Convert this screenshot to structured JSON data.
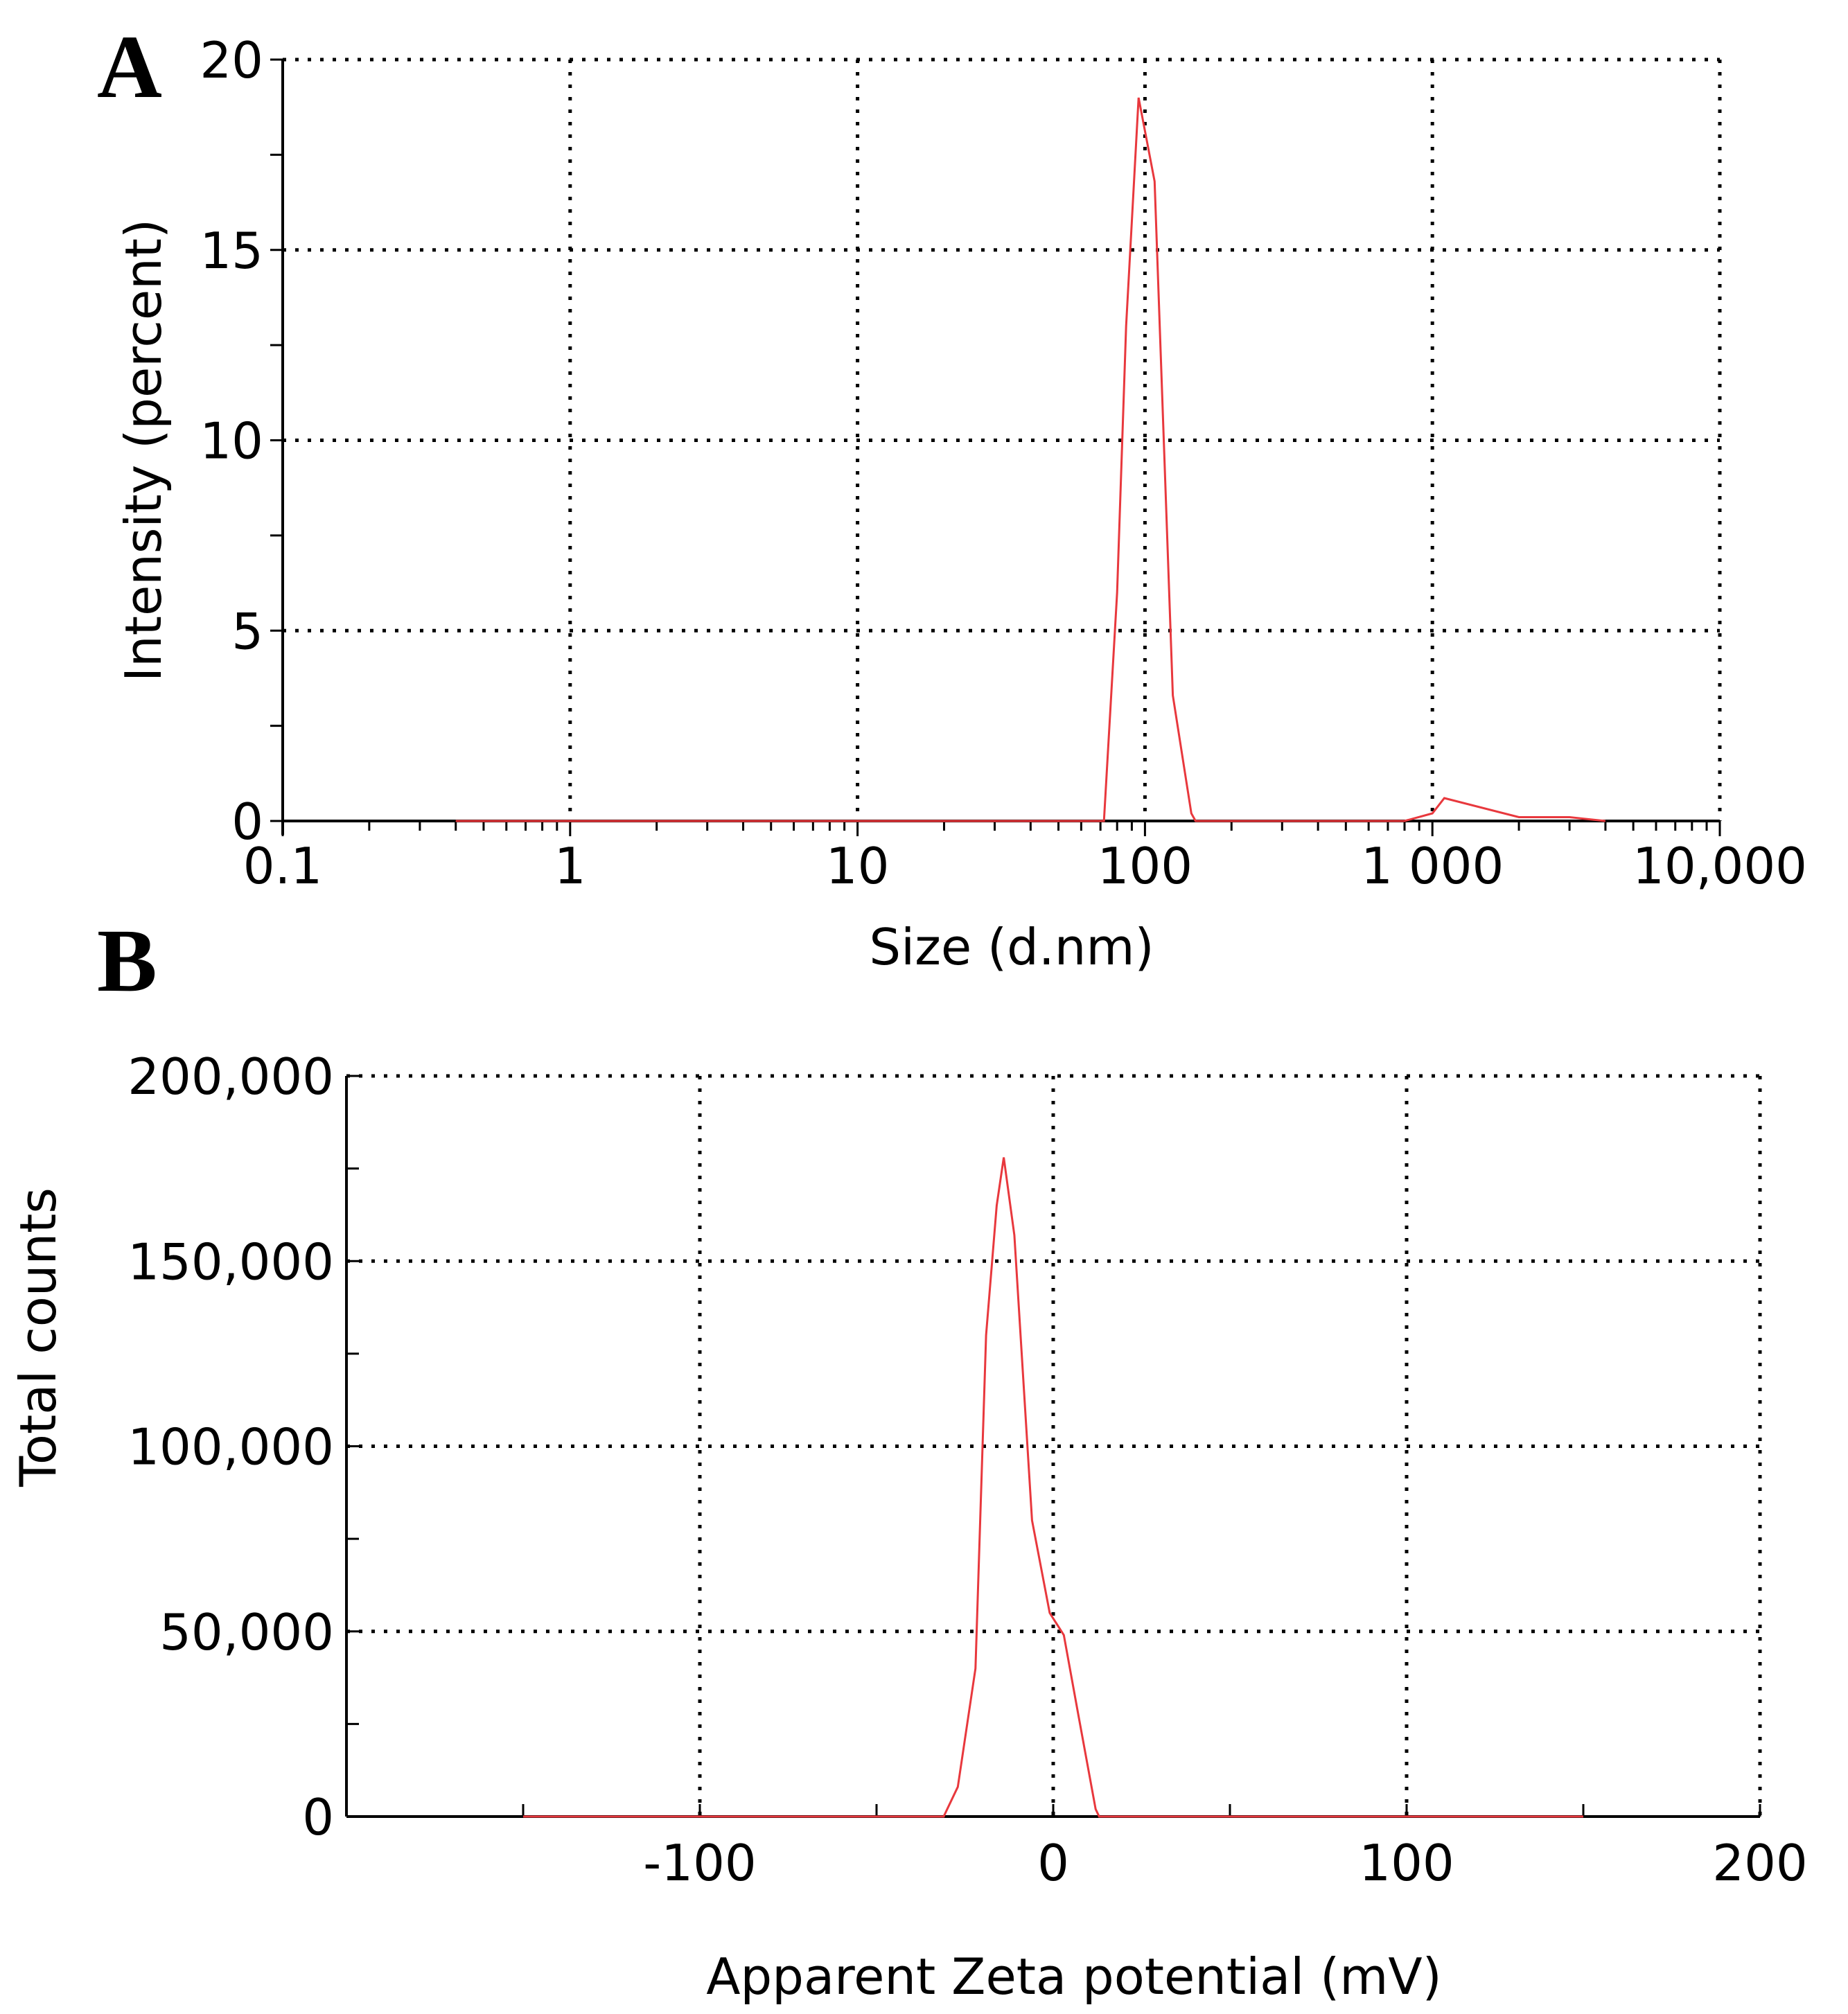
{
  "chart_data": [
    {
      "panel_label": "A",
      "type": "line",
      "xlabel": "Size (d.nm)",
      "ylabel": "Intensity (percent)",
      "xscale": "log",
      "xlim": [
        0.1,
        10000
      ],
      "ylim": [
        0,
        20
      ],
      "x_ticks": [
        0.1,
        1,
        10,
        100,
        1000,
        10000
      ],
      "x_tick_labels": [
        "0.1",
        "1",
        "10",
        "100",
        "1 000",
        "10,000"
      ],
      "y_ticks": [
        0,
        5,
        10,
        15,
        20
      ],
      "y_tick_labels": [
        "0",
        "5",
        "10",
        "15",
        "20"
      ],
      "grid": true,
      "series": [
        {
          "name": "Intensity",
          "color": "#e8383d",
          "x": [
            0.4,
            1,
            10,
            50,
            72,
            80,
            86,
            95,
            108,
            125,
            145,
            150,
            300,
            800,
            1000,
            1100,
            2000,
            3000,
            4000
          ],
          "y": [
            0,
            0,
            0,
            0,
            0,
            6.0,
            13.0,
            19.0,
            16.8,
            3.3,
            0.2,
            0,
            0,
            0,
            0.2,
            0.6,
            0.1,
            0.1,
            0
          ]
        }
      ]
    },
    {
      "panel_label": "B",
      "type": "line",
      "xlabel": "Apparent Zeta potential (mV)",
      "ylabel": "Total counts",
      "xlim": [
        -200,
        200
      ],
      "ylim": [
        0,
        200000
      ],
      "x_ticks": [
        -100,
        0,
        100,
        200
      ],
      "x_tick_labels": [
        "-100",
        "0",
        "100",
        "200"
      ],
      "y_ticks": [
        0,
        50000,
        100000,
        150000,
        200000
      ],
      "y_tick_labels": [
        "0",
        "50,000",
        "100,000",
        "150,000",
        "200,000"
      ],
      "grid": true,
      "series": [
        {
          "name": "Total counts",
          "color": "#e8383d",
          "x": [
            -150,
            -31,
            -27,
            -22,
            -19,
            -16,
            -14,
            -11,
            -6,
            -1,
            3,
            7,
            12,
            13,
            17,
            150
          ],
          "y": [
            0,
            0,
            8000,
            40000,
            130000,
            165000,
            178000,
            157000,
            80000,
            55000,
            49000,
            28000,
            2000,
            0,
            0,
            0
          ]
        }
      ]
    }
  ]
}
